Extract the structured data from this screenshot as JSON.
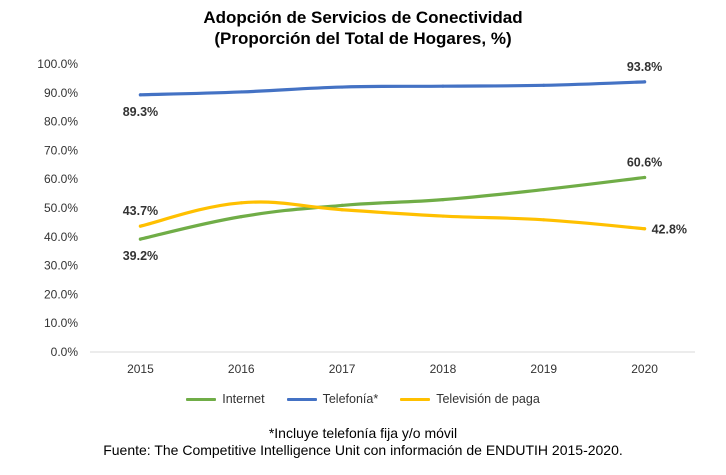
{
  "chart_data": {
    "type": "line",
    "title": "Adopción de Servicios de Conectividad",
    "subtitle": "(Proporción del Total de Hogares, %)",
    "x": [
      2015,
      2016,
      2017,
      2018,
      2019,
      2020
    ],
    "ylim": [
      0,
      100
    ],
    "yticks": [
      "0.0%",
      "10.0%",
      "20.0%",
      "30.0%",
      "40.0%",
      "50.0%",
      "60.0%",
      "70.0%",
      "80.0%",
      "90.0%",
      "100.0%"
    ],
    "series": [
      {
        "name": "Internet",
        "color": "#70AD47",
        "values": [
          39.2,
          47.0,
          50.9,
          52.9,
          56.4,
          60.6
        ],
        "labels": [
          {
            "index": 0,
            "text": "39.2%",
            "pos": "below"
          },
          {
            "index": 5,
            "text": "60.6%",
            "pos": "above"
          }
        ]
      },
      {
        "name": "Telefonía*",
        "color": "#4472C4",
        "values": [
          89.3,
          90.3,
          92.0,
          92.3,
          92.6,
          93.8
        ],
        "labels": [
          {
            "index": 0,
            "text": "89.3%",
            "pos": "below"
          },
          {
            "index": 5,
            "text": "93.8%",
            "pos": "above"
          }
        ]
      },
      {
        "name": "Televisión de paga",
        "color": "#FFC000",
        "values": [
          43.7,
          51.8,
          49.4,
          47.2,
          45.9,
          42.8
        ],
        "labels": [
          {
            "index": 0,
            "text": "43.7%",
            "pos": "above"
          },
          {
            "index": 5,
            "text": "42.8%",
            "pos": "right"
          }
        ]
      }
    ]
  },
  "footnote": {
    "line1": "*Incluye telefonía fija y/o móvil",
    "line2": "Fuente: The Competitive Intelligence Unit con información de ENDUTIH 2015-2020."
  }
}
